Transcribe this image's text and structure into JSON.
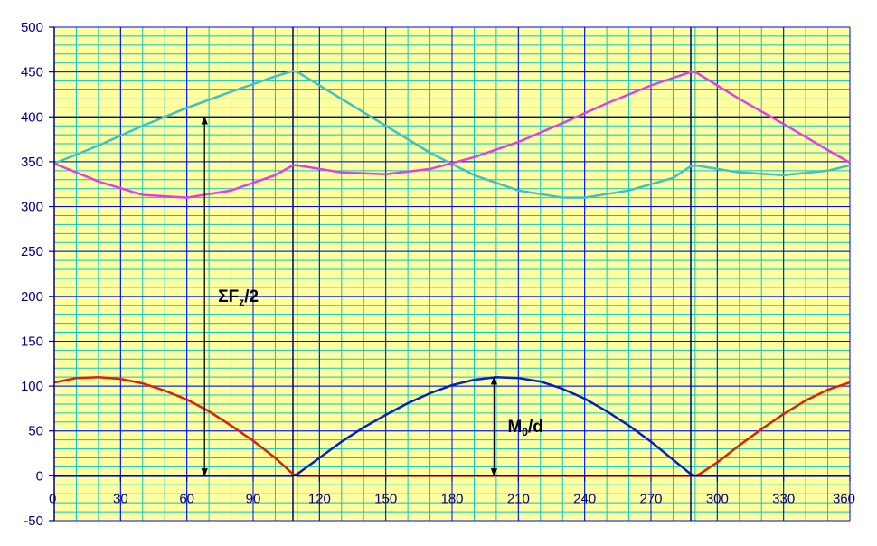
{
  "chart_data": {
    "type": "line",
    "title": "",
    "xlabel": "",
    "ylabel": "",
    "xlim": [
      0,
      360
    ],
    "ylim": [
      -50,
      500
    ],
    "x_ticks": [
      0,
      30,
      60,
      90,
      120,
      150,
      180,
      210,
      240,
      270,
      300,
      330,
      360
    ],
    "y_ticks": [
      -50,
      0,
      50,
      100,
      150,
      200,
      250,
      300,
      350,
      400,
      450,
      500
    ],
    "grid": true,
    "background_color": "#ffffa0",
    "series": [
      {
        "color": "#40c0c0",
        "x": [
          0,
          20,
          40,
          60,
          80,
          100,
          108,
          110,
          130,
          150,
          170,
          190,
          210,
          230,
          240,
          260,
          280,
          288,
          290,
          310,
          330,
          350,
          360
        ],
        "y": [
          348,
          368,
          390,
          410,
          428,
          445,
          451,
          450,
          420,
          390,
          360,
          335,
          318,
          310,
          310,
          318,
          332,
          345,
          346,
          338,
          335,
          340,
          346
        ]
      },
      {
        "color": "#e040e0",
        "x": [
          0,
          20,
          40,
          60,
          80,
          100,
          108,
          110,
          130,
          150,
          170,
          190,
          210,
          230,
          250,
          270,
          288,
          290,
          310,
          330,
          350,
          360
        ],
        "y": [
          348,
          328,
          313,
          310,
          318,
          335,
          346,
          346,
          338,
          336,
          342,
          355,
          372,
          393,
          415,
          435,
          450,
          450,
          420,
          392,
          363,
          349
        ]
      },
      {
        "color": "#e02000",
        "x": [
          0,
          10,
          20,
          30,
          40,
          50,
          60,
          70,
          80,
          90,
          100,
          108,
          110,
          290,
          292,
          300,
          310,
          320,
          330,
          340,
          350,
          360
        ],
        "y": [
          104,
          109,
          110,
          108,
          103,
          95,
          85,
          72,
          56,
          39,
          20,
          2,
          0,
          0,
          2,
          15,
          34,
          52,
          69,
          84,
          96,
          104
        ],
        "gaps": []
      },
      {
        "color": "#0020c8",
        "x": [
          0,
          108,
          110,
          120,
          130,
          140,
          150,
          160,
          170,
          180,
          190,
          200,
          210,
          220,
          230,
          240,
          250,
          260,
          270,
          280,
          288,
          290,
          360
        ],
        "y": [
          0,
          0,
          2,
          20,
          38,
          54,
          68,
          81,
          92,
          101,
          107,
          110,
          109,
          105,
          97,
          86,
          72,
          56,
          38,
          18,
          2,
          0,
          0
        ]
      }
    ],
    "annotations": [
      {
        "base": "ΣF",
        "sub": "z",
        "rest": "/2",
        "x": 68,
        "y_from": 0,
        "y_to": 400
      },
      {
        "base": "M",
        "sub": "0",
        "rest": "/d",
        "x": 199,
        "y_from": 0,
        "y_to": 110
      }
    ],
    "colors": {
      "axis": "#000080",
      "grid_minor": "#00c8c8",
      "grid_major": "#0000ff",
      "marker_line": "#000080"
    },
    "vertical_markers": [
      108,
      288
    ],
    "highlight_y": 400
  }
}
